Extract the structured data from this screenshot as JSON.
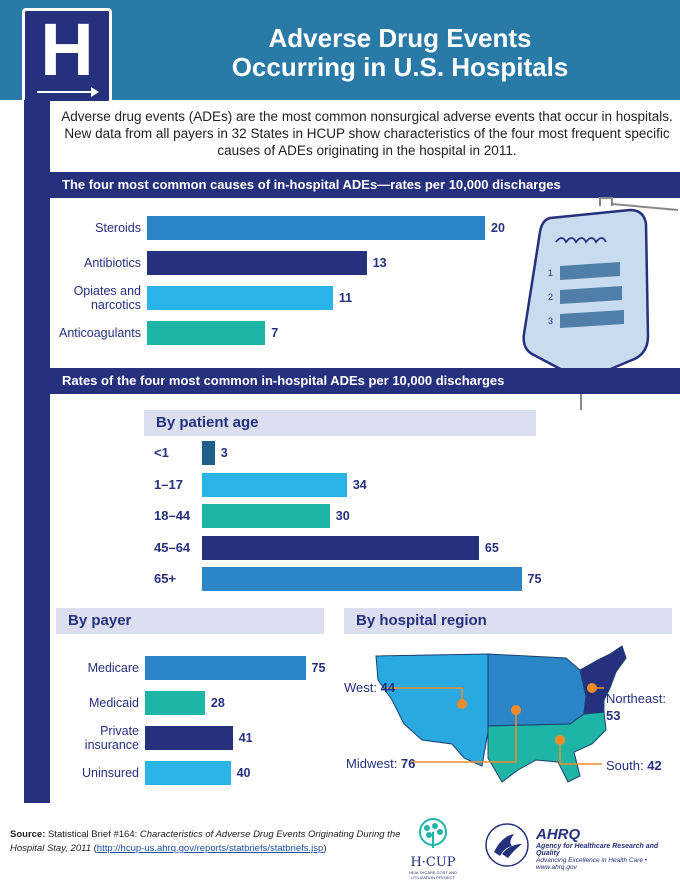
{
  "header": {
    "logo_letter": "H",
    "title_line1": "Adverse Drug Events",
    "title_line2": "Occurring in U.S. Hospitals"
  },
  "intro": "Adverse drug events (ADEs) are the most common nonsurgical adverse events that occur in hospitals. New data from all payers in 32 States in HCUP show characteristics of the four most frequent specific causes of ADEs originating in the hospital in 2011.",
  "sections": {
    "causes_title": "The four most common causes of in-hospital ADEs—rates per 10,000 discharges",
    "rates_title": "Rates of the four most common in-hospital ADEs per 10,000 discharges",
    "age_title": "By patient age",
    "payer_title": "By payer",
    "region_title": "By hospital region"
  },
  "iv_bag": {
    "marks": [
      "1",
      "2",
      "3"
    ]
  },
  "chart_data": [
    {
      "id": "causes",
      "type": "bar",
      "orientation": "horizontal",
      "categories": [
        "Steroids",
        "Antibiotics",
        "Opiates and narcotics",
        "Anticoagulants"
      ],
      "values": [
        20,
        13,
        11,
        7
      ],
      "colors": [
        "#2a86c6",
        "#26317e",
        "#29b3e6",
        "#1fb5a6"
      ]
    },
    {
      "id": "age",
      "type": "bar",
      "orientation": "horizontal",
      "categories": [
        "<1",
        "1–17",
        "18–44",
        "45–64",
        "65+"
      ],
      "values": [
        3,
        34,
        30,
        65,
        75
      ],
      "colors": [
        "#1f5f8a",
        "#29b3e6",
        "#1fb5a6",
        "#26317e",
        "#2a86c6"
      ]
    },
    {
      "id": "payer",
      "type": "bar",
      "orientation": "horizontal",
      "categories": [
        "Medicare",
        "Medicaid",
        "Private insurance",
        "Uninsured"
      ],
      "values": [
        75,
        28,
        41,
        40
      ],
      "colors": [
        "#2a86c6",
        "#1fb5a6",
        "#26317e",
        "#29b3e6"
      ]
    },
    {
      "id": "region",
      "type": "map",
      "regions": [
        {
          "name": "West",
          "value": 44,
          "color": "#29a9e0"
        },
        {
          "name": "Midwest",
          "value": 76,
          "color": "#2a86c6"
        },
        {
          "name": "South",
          "value": 42,
          "color": "#1fb5a6"
        },
        {
          "name": "Northeast",
          "value": 53,
          "color": "#26317e"
        }
      ]
    }
  ],
  "source": {
    "label": "Source:",
    "text_plain": " Statistical Brief #164: ",
    "text_italic": "Characteristics of Adverse Drug Events Originating During the Hospital Stay, 2011",
    "open_paren": " (",
    "link": "http://hcup-us.ahrq.gov/reports/statbriefs/statbriefs.jsp",
    "close_paren": ")"
  },
  "logos": {
    "hcup_name": "H·CUP",
    "hcup_sub": "HEALTHCARE COST AND UTILIZATION PROJECT",
    "ahrq_name": "AHRQ",
    "ahrq_line1": "Agency for Healthcare Research and Quality",
    "ahrq_line2": "Advancing Excellence in Health Care • www.ahrq.gov"
  },
  "colors": {
    "navy": "#26317e",
    "header_blue": "#2a7aa8",
    "subheader_bg": "#dcdff0"
  }
}
